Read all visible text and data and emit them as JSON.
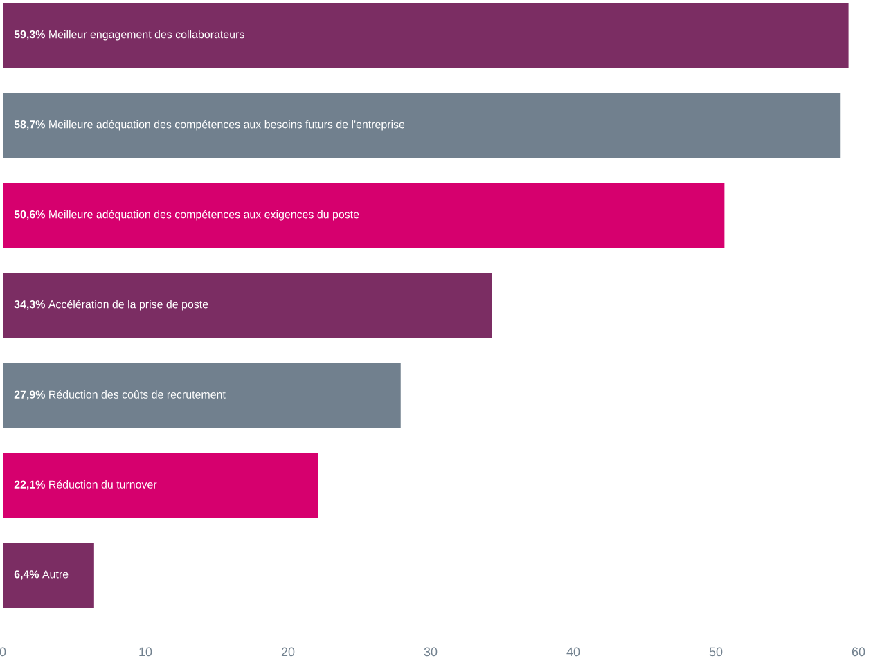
{
  "chart_data": {
    "type": "bar",
    "orientation": "horizontal",
    "categories": [
      "Meilleur engagement des collaborateurs",
      "Meilleure adéquation des compétences aux besoins futurs de l'entreprise",
      "Meilleure adéquation des compétences aux exigences du poste",
      "Accélération de la prise de poste",
      "Réduction des coûts de recrutement",
      "Réduction du turnover",
      "Autre"
    ],
    "values": [
      59.3,
      58.7,
      50.6,
      34.3,
      27.9,
      22.1,
      6.4
    ],
    "value_labels": [
      "59,3%",
      "58,7%",
      "50,6%",
      "34,3%",
      "27,9%",
      "22,1%",
      "6,4%"
    ],
    "colors": [
      "#7b2d63",
      "#71808e",
      "#d6006e",
      "#7b2d63",
      "#71808e",
      "#d6006e",
      "#7b2d63"
    ],
    "xlim": [
      0,
      60
    ],
    "xticks": [
      0,
      10,
      20,
      30,
      40,
      50,
      60
    ]
  }
}
